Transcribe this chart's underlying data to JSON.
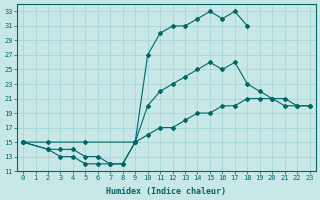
{
  "xlabel": "Humidex (Indice chaleur)",
  "bg_color": "#c8e8e8",
  "grid_color": "#aad4d4",
  "line_color": "#006666",
  "xlim": [
    -0.5,
    23.5
  ],
  "ylim": [
    11,
    34
  ],
  "xticks": [
    0,
    1,
    2,
    3,
    4,
    5,
    6,
    7,
    8,
    9,
    10,
    11,
    12,
    13,
    14,
    15,
    16,
    17,
    18,
    19,
    20,
    21,
    22,
    23
  ],
  "yticks": [
    11,
    13,
    15,
    17,
    19,
    21,
    23,
    25,
    27,
    29,
    31,
    33
  ],
  "line1_x": [
    0,
    2,
    3,
    4,
    5,
    6,
    7,
    8,
    9,
    10,
    11,
    12,
    13,
    14,
    15,
    16,
    17,
    18
  ],
  "line1_y": [
    15,
    14,
    13,
    13,
    12,
    12,
    12,
    12,
    15,
    27,
    30,
    31,
    31,
    32,
    33,
    32,
    33,
    31
  ],
  "line2_x": [
    0,
    2,
    3,
    4,
    5,
    6,
    7,
    8,
    9,
    10,
    11,
    12,
    13,
    14,
    15,
    16,
    17,
    18,
    19,
    20,
    21,
    22,
    23
  ],
  "line2_y": [
    15,
    14,
    14,
    14,
    13,
    13,
    12,
    12,
    15,
    20,
    22,
    23,
    24,
    25,
    26,
    25,
    26,
    23,
    22,
    21,
    20,
    20,
    20
  ],
  "line3_x": [
    0,
    2,
    5,
    9,
    10,
    11,
    12,
    13,
    14,
    15,
    16,
    17,
    18,
    19,
    20,
    21,
    22,
    23
  ],
  "line3_y": [
    15,
    15,
    15,
    15,
    16,
    17,
    17,
    18,
    19,
    19,
    20,
    20,
    21,
    21,
    21,
    21,
    20,
    20
  ]
}
